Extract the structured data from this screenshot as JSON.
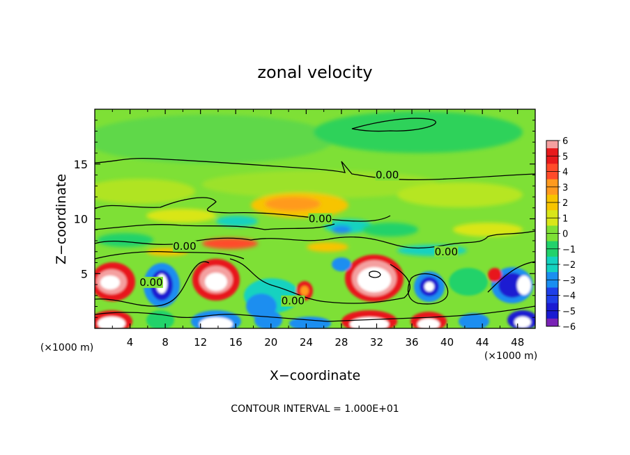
{
  "chart_data": {
    "type": "heatmap",
    "title": "zonal velocity",
    "xlabel": "X−coordinate",
    "ylabel": "Z−coordinate",
    "x_units_label": "(×1000 m)",
    "y_units_label": "(×1000 m)",
    "xlim": [
      0,
      50
    ],
    "ylim": [
      0,
      20
    ],
    "x_ticks": [
      4,
      8,
      12,
      16,
      20,
      24,
      28,
      32,
      36,
      40,
      44,
      48
    ],
    "y_ticks": [
      5,
      10,
      15
    ],
    "colorbar": {
      "levels": [
        6,
        5,
        4,
        3,
        2,
        1,
        0,
        -1,
        -2,
        -3,
        -4,
        -5,
        -6
      ],
      "labels": [
        "6",
        "5",
        "4",
        "3",
        "2",
        "1",
        "0",
        "−1",
        "−2",
        "−3",
        "−4",
        "−5",
        "−6"
      ],
      "colors": [
        "#f4a0a0",
        "#e8191c",
        "#ff4b2a",
        "#ff9a1f",
        "#f7c400",
        "#d9e619",
        "#7ee036",
        "#22d26b",
        "#14d2c0",
        "#1a8ef0",
        "#1f3fe8",
        "#1a1ad2",
        "#7a23b6"
      ]
    },
    "contour_labels": [
      {
        "text": "0.00",
        "x": 33.2,
        "z": 14.0
      },
      {
        "text": "0.00",
        "x": 25.6,
        "z": 10.0
      },
      {
        "text": "0.00",
        "x": 10.2,
        "z": 7.5
      },
      {
        "text": "0.00",
        "x": 39.9,
        "z": 7.0
      },
      {
        "text": "0.00",
        "x": 6.4,
        "z": 4.2
      },
      {
        "text": "0.00",
        "x": 22.5,
        "z": 2.5
      }
    ],
    "contour_interval_text": "CONTOUR INTERVAL = 1.000E+01"
  }
}
